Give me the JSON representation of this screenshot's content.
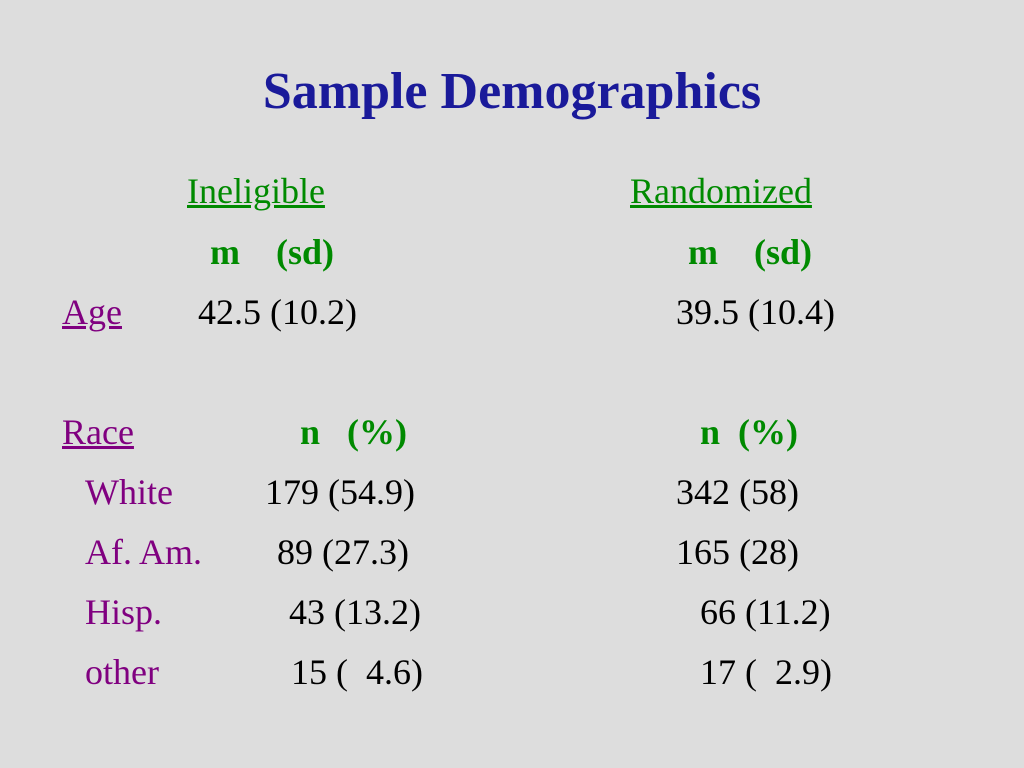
{
  "title": "Sample Demographics",
  "columns": [
    "Ineligible",
    "Randomized"
  ],
  "age": {
    "stat_header": [
      "m    (sd)",
      "m    (sd)"
    ],
    "label": "Age",
    "values": [
      "42.5 (10.2)",
      "39.5 (10.4)"
    ]
  },
  "race": {
    "label": "Race",
    "stat_header": [
      "n   (%)",
      "n  (%)"
    ],
    "rows": [
      {
        "label": "White",
        "values": [
          "179 (54.9)",
          "342 (58)"
        ]
      },
      {
        "label": "Af. Am.",
        "values": [
          "89 (27.3)",
          "165 (28)"
        ]
      },
      {
        "label": "Hisp.",
        "values": [
          "43 (13.2)",
          "66 (11.2)"
        ]
      },
      {
        "label": "other",
        "values": [
          "15 (  4.6)",
          "17 (  2.9)"
        ]
      }
    ]
  }
}
